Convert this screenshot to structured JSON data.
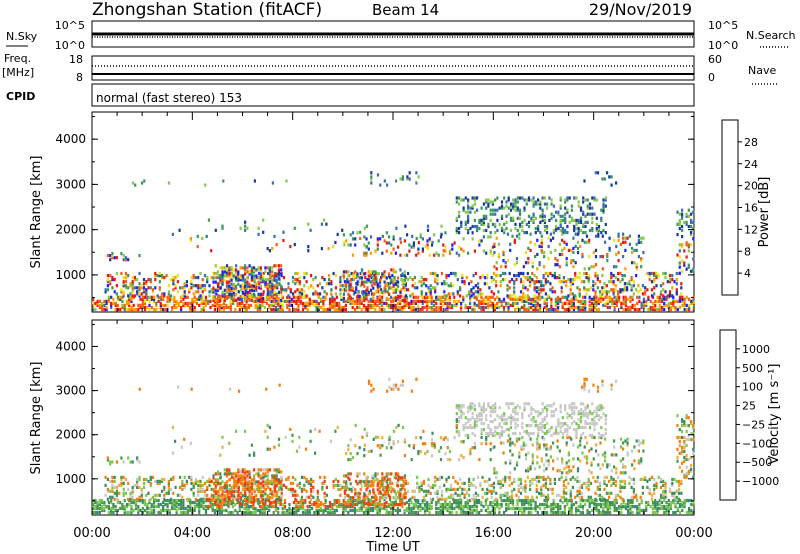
{
  "header": {
    "title": "Zhongshan Station (fitACF)",
    "beam": "Beam 14",
    "date": "29/Nov/2019"
  },
  "noise_panel": {
    "left_label": "N.Sky",
    "right_label": "N.Search",
    "ticks": [
      "10^5",
      "10^0"
    ]
  },
  "freq_panel": {
    "left_label": "Freq.",
    "left_unit": "[MHz]",
    "left_ticks": [
      "18",
      "8"
    ],
    "right_label": "Nave",
    "right_ticks": [
      "60",
      "0"
    ]
  },
  "cpid_panel": {
    "label": "CPID",
    "text": "normal (fast stereo) 153"
  },
  "chart_data": [
    {
      "type": "heatmap",
      "ylabel": "Slant Range [km]",
      "ylim": [
        180,
        4600
      ],
      "yticks": [
        "1000",
        "2000",
        "3000",
        "4000"
      ],
      "colorbar_label": "Power [dB]",
      "colorbar_ticks": [
        "28",
        "24",
        "20",
        "16",
        "12",
        "8",
        "4"
      ],
      "colors": [
        "#2020ff",
        "#1a3a9a",
        "#3a70b0",
        "#3a9a5a",
        "#88c84a",
        "#f0e020",
        "#f8a000",
        "#f06018",
        "#e81818"
      ]
    },
    {
      "type": "heatmap",
      "ylabel": "Slant Range [km]",
      "ylim": [
        180,
        4600
      ],
      "yticks": [
        "1000",
        "2000",
        "3000",
        "4000"
      ],
      "colorbar_label": "Velocity [m s⁻¹]",
      "colorbar_ticks": [
        "1000",
        "500",
        "100",
        "25",
        "−25",
        "−100",
        "−500",
        "−1000"
      ],
      "colors": [
        "#1a3aa8",
        "#2d6ab0",
        "#3a8a6a",
        "#4a9a4a",
        "#7cc850",
        "#c8c8c8",
        "#e8b040",
        "#f08010",
        "#f04010",
        "#e81010"
      ]
    }
  ],
  "xaxis": {
    "ticks": [
      "00:00",
      "04:00",
      "08:00",
      "12:00",
      "16:00",
      "20:00",
      "00:00"
    ],
    "xlabel": "Time UT"
  }
}
